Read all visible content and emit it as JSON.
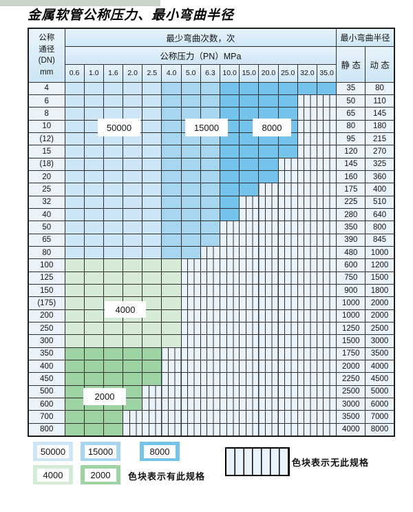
{
  "title": "金属软管公称压力、最小弯曲半径",
  "table": {
    "dn_header": [
      "公称",
      "通径",
      "(DN)",
      "mm"
    ],
    "bend_header": "最少弯曲次数，次",
    "pressure_header": "公称压力（PN）MPa",
    "radius_header": "最小弯曲半径",
    "static_header": "静 态",
    "dynamic_header": "动 态",
    "pressure_columns": [
      "0.6",
      "1.0",
      "1.6",
      "2.0",
      "2.5",
      "4.0",
      "5.0",
      "6.3",
      "10.0",
      "15.0",
      "20.0",
      "25.0",
      "32.0",
      "35.0"
    ],
    "rows": [
      {
        "dn": "4",
        "band": "blue",
        "through": 13,
        "st": "35",
        "dy": "80"
      },
      {
        "dn": "6",
        "band": "blue",
        "through": 11,
        "st": "50",
        "dy": "110"
      },
      {
        "dn": "8",
        "band": "blue",
        "through": 11,
        "st": "65",
        "dy": "145"
      },
      {
        "dn": "10",
        "band": "blue",
        "through": 11,
        "st": "80",
        "dy": "180"
      },
      {
        "dn": "(12)",
        "band": "blue",
        "through": 11,
        "st": "95",
        "dy": "215"
      },
      {
        "dn": "15",
        "band": "blue",
        "through": 11,
        "st": "120",
        "dy": "270"
      },
      {
        "dn": "(18)",
        "band": "blue",
        "through": 10,
        "st": "145",
        "dy": "325"
      },
      {
        "dn": "20",
        "band": "blue",
        "through": 10,
        "st": "160",
        "dy": "360"
      },
      {
        "dn": "25",
        "band": "blue",
        "through": 9,
        "st": "175",
        "dy": "400"
      },
      {
        "dn": "32",
        "band": "blue",
        "through": 8,
        "st": "225",
        "dy": "510"
      },
      {
        "dn": "40",
        "band": "blue",
        "through": 8,
        "st": "280",
        "dy": "640"
      },
      {
        "dn": "50",
        "band": "blue",
        "through": 7,
        "st": "350",
        "dy": "800"
      },
      {
        "dn": "65",
        "band": "blue",
        "through": 7,
        "st": "390",
        "dy": "845"
      },
      {
        "dn": "80",
        "band": "blue",
        "through": 6,
        "st": "480",
        "dy": "1000"
      },
      {
        "dn": "100",
        "band": "g1",
        "through": 5,
        "st": "600",
        "dy": "1200"
      },
      {
        "dn": "125",
        "band": "g1",
        "through": 5,
        "st": "750",
        "dy": "1500"
      },
      {
        "dn": "150",
        "band": "g1",
        "through": 5,
        "st": "900",
        "dy": "1800"
      },
      {
        "dn": "(175)",
        "band": "g1",
        "through": 5,
        "st": "1000",
        "dy": "2000"
      },
      {
        "dn": "200",
        "band": "g1",
        "through": 5,
        "st": "1000",
        "dy": "2000"
      },
      {
        "dn": "250",
        "band": "g1",
        "through": 5,
        "st": "1250",
        "dy": "2500"
      },
      {
        "dn": "300",
        "band": "g1",
        "through": 5,
        "st": "1500",
        "dy": "3000"
      },
      {
        "dn": "350",
        "band": "g2",
        "through": 4,
        "st": "1750",
        "dy": "3500"
      },
      {
        "dn": "400",
        "band": "g2",
        "through": 4,
        "st": "2000",
        "dy": "4000"
      },
      {
        "dn": "450",
        "band": "g2",
        "through": 4,
        "st": "2250",
        "dy": "4500"
      },
      {
        "dn": "500",
        "band": "g2",
        "through": 3,
        "st": "2500",
        "dy": "5000"
      },
      {
        "dn": "600",
        "band": "g2",
        "through": 3,
        "st": "3000",
        "dy": "6000"
      },
      {
        "dn": "700",
        "band": "g2",
        "through": 2,
        "st": "3500",
        "dy": "7000"
      },
      {
        "dn": "800",
        "band": "g2",
        "through": 2,
        "st": "4000",
        "dy": "8000"
      }
    ],
    "blue_shade_breaks": {
      "b1_cols": "0.6-2.5",
      "b2_cols": "4.0-6.3",
      "b3_cols": "10.0-35.0"
    }
  },
  "overlays": [
    "50000",
    "15000",
    "8000",
    "4000",
    "2000"
  ],
  "legend": {
    "items": [
      {
        "label": "50000",
        "shade": "b1"
      },
      {
        "label": "15000",
        "shade": "b2"
      },
      {
        "label": "8000",
        "shade": "b3"
      },
      {
        "label": "4000",
        "shade": "g1"
      },
      {
        "label": "2000",
        "shade": "g2"
      }
    ],
    "has_spec_text": "色块表示有此规格",
    "no_spec_text": "色块表示无此规格"
  },
  "colors": {
    "b1": "#cde6f7",
    "b2": "#a7d6f0",
    "b3": "#74c3ea",
    "g1": "#d6ebd5",
    "g2": "#9ed3a4",
    "hatchbg": "#e9f3fb",
    "cellbg": "#eaf3fa",
    "line": "#2e2e2e",
    "strip": "#c9d3c8"
  }
}
